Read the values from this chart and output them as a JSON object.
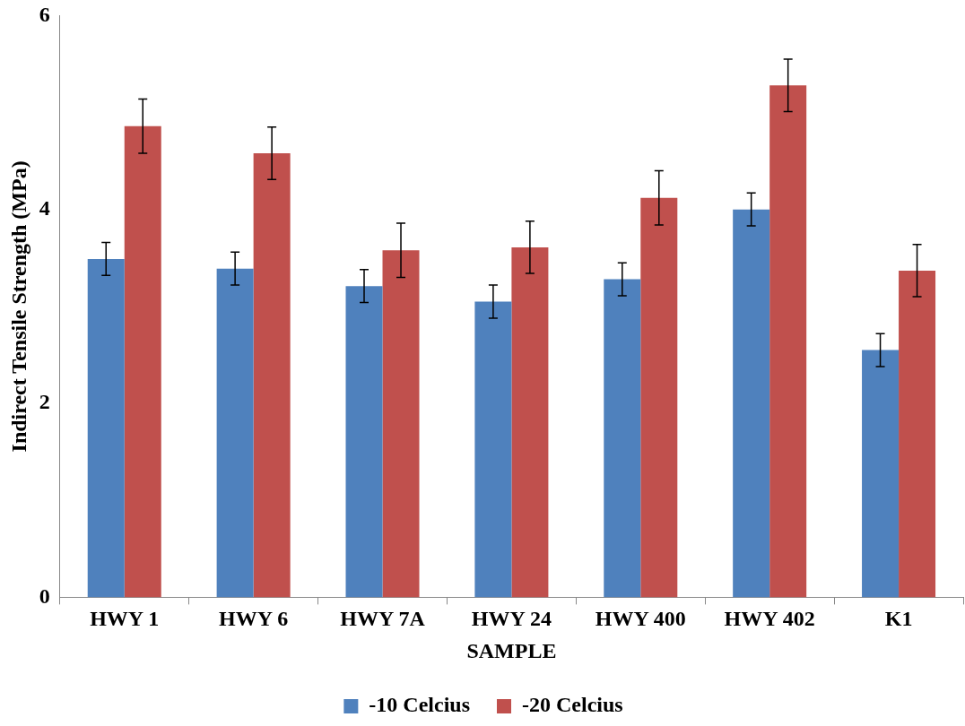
{
  "chart_data": {
    "type": "bar",
    "xlabel": "SAMPLE",
    "ylabel": "Indirect Tensile Strength (MPa)",
    "categories": [
      "HWY 1",
      "HWY 6",
      "HWY 7A",
      "HWY 24",
      "HWY 400",
      "HWY 402",
      "K1"
    ],
    "series": [
      {
        "name": "-10 Celcius",
        "color": "#4f81bd",
        "values": [
          3.49,
          3.39,
          3.21,
          3.05,
          3.28,
          4.0,
          2.55
        ],
        "errors": [
          0.17,
          0.17,
          0.17,
          0.17,
          0.17,
          0.17,
          0.17
        ]
      },
      {
        "name": "-20 Celcius",
        "color": "#c0504d",
        "values": [
          4.86,
          4.58,
          3.58,
          3.61,
          4.12,
          5.28,
          3.37
        ],
        "errors": [
          0.28,
          0.27,
          0.28,
          0.27,
          0.28,
          0.27,
          0.27
        ]
      }
    ],
    "ylim": [
      0,
      6
    ],
    "yticks": [
      0,
      2,
      4,
      6
    ],
    "grid": false,
    "legend": "bottom"
  }
}
